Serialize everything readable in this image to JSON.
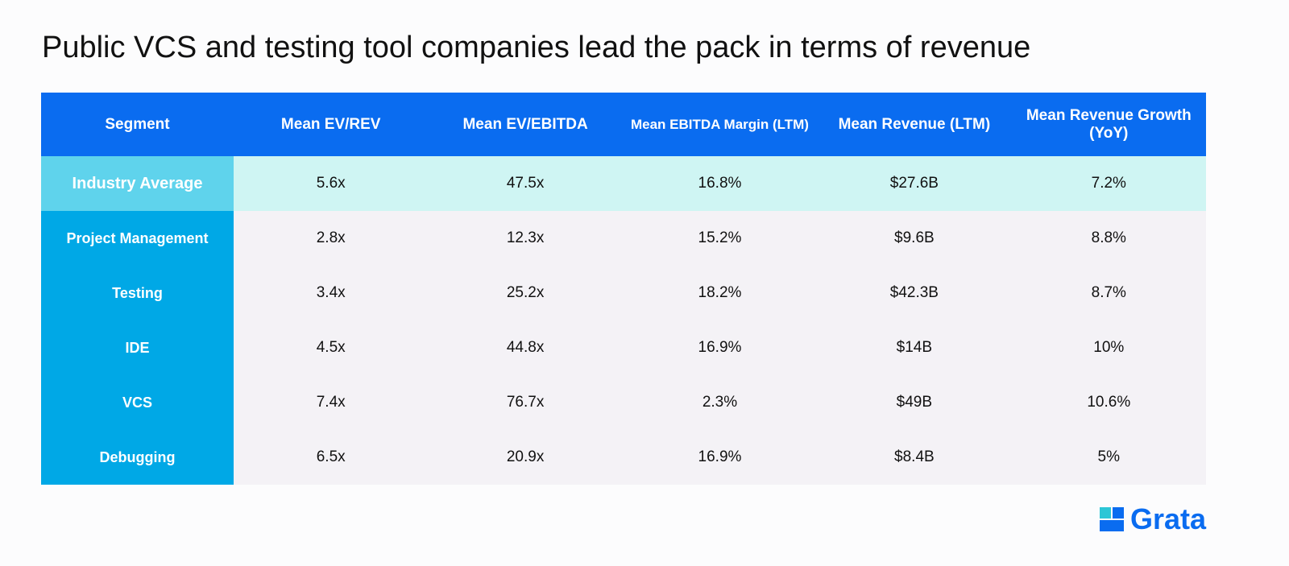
{
  "header": {
    "title": "Public VCS and testing tool companies lead the pack in terms of revenue"
  },
  "table": {
    "columns": [
      "Segment",
      "Mean EV/REV",
      "Mean EV/EBITDA",
      "Mean EBITDA Margin (LTM)",
      "Mean Revenue (LTM)",
      "Mean Revenue Growth (YoY)"
    ],
    "rows": [
      [
        "Industry Average",
        "5.6x",
        "47.5x",
        "16.8%",
        "$27.6B",
        "7.2%"
      ],
      [
        "Project Management",
        "2.8x",
        "12.3x",
        "15.2%",
        "$9.6B",
        "8.8%"
      ],
      [
        "Testing",
        "3.4x",
        "25.2x",
        "18.2%",
        "$42.3B",
        "8.7%"
      ],
      [
        "IDE",
        "4.5x",
        "44.8x",
        "16.9%",
        "$14B",
        "10%"
      ],
      [
        "VCS",
        "7.4x",
        "76.7x",
        "2.3%",
        "$49B",
        "10.6%"
      ],
      [
        "Debugging",
        "6.5x",
        "20.9x",
        "16.9%",
        "$8.4B",
        "5%"
      ]
    ]
  },
  "logo": {
    "text": "Grata"
  }
}
